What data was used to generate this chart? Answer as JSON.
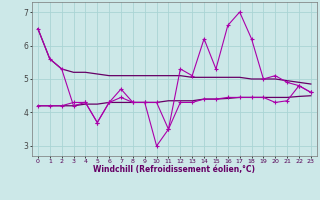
{
  "x": [
    0,
    1,
    2,
    3,
    4,
    5,
    6,
    7,
    8,
    9,
    10,
    11,
    12,
    13,
    14,
    15,
    16,
    17,
    18,
    19,
    20,
    21,
    22,
    23
  ],
  "y_line1": [
    6.5,
    5.6,
    5.3,
    5.2,
    5.2,
    5.15,
    5.1,
    5.1,
    5.1,
    5.1,
    5.1,
    5.1,
    5.1,
    5.05,
    5.05,
    5.05,
    5.05,
    5.05,
    5.0,
    5.0,
    5.0,
    4.95,
    4.9,
    4.85
  ],
  "y_line2": [
    6.5,
    5.6,
    5.3,
    4.2,
    4.3,
    3.7,
    4.3,
    4.7,
    4.3,
    4.3,
    3.0,
    3.5,
    5.3,
    5.1,
    6.2,
    5.3,
    6.6,
    7.0,
    6.2,
    5.0,
    5.1,
    4.9,
    4.8,
    4.6
  ],
  "y_line3": [
    4.2,
    4.2,
    4.2,
    4.2,
    4.25,
    4.25,
    4.3,
    4.3,
    4.3,
    4.3,
    4.3,
    4.35,
    4.35,
    4.35,
    4.4,
    4.4,
    4.42,
    4.45,
    4.45,
    4.45,
    4.45,
    4.45,
    4.48,
    4.5
  ],
  "y_line4": [
    4.2,
    4.2,
    4.2,
    4.3,
    4.3,
    3.7,
    4.3,
    4.45,
    4.3,
    4.3,
    4.3,
    3.5,
    4.3,
    4.3,
    4.4,
    4.4,
    4.45,
    4.45,
    4.45,
    4.45,
    4.3,
    4.35,
    4.8,
    4.6
  ],
  "color_bright": "#aa00aa",
  "color_dark": "#660066",
  "background_color": "#cce8e8",
  "grid_color": "#aad4d4",
  "xlabel": "Windchill (Refroidissement éolien,°C)",
  "ylim": [
    2.7,
    7.3
  ],
  "xlim": [
    -0.5,
    23.5
  ],
  "yticks": [
    3,
    4,
    5,
    6,
    7
  ],
  "xticks": [
    0,
    1,
    2,
    3,
    4,
    5,
    6,
    7,
    8,
    9,
    10,
    11,
    12,
    13,
    14,
    15,
    16,
    17,
    18,
    19,
    20,
    21,
    22,
    23
  ]
}
